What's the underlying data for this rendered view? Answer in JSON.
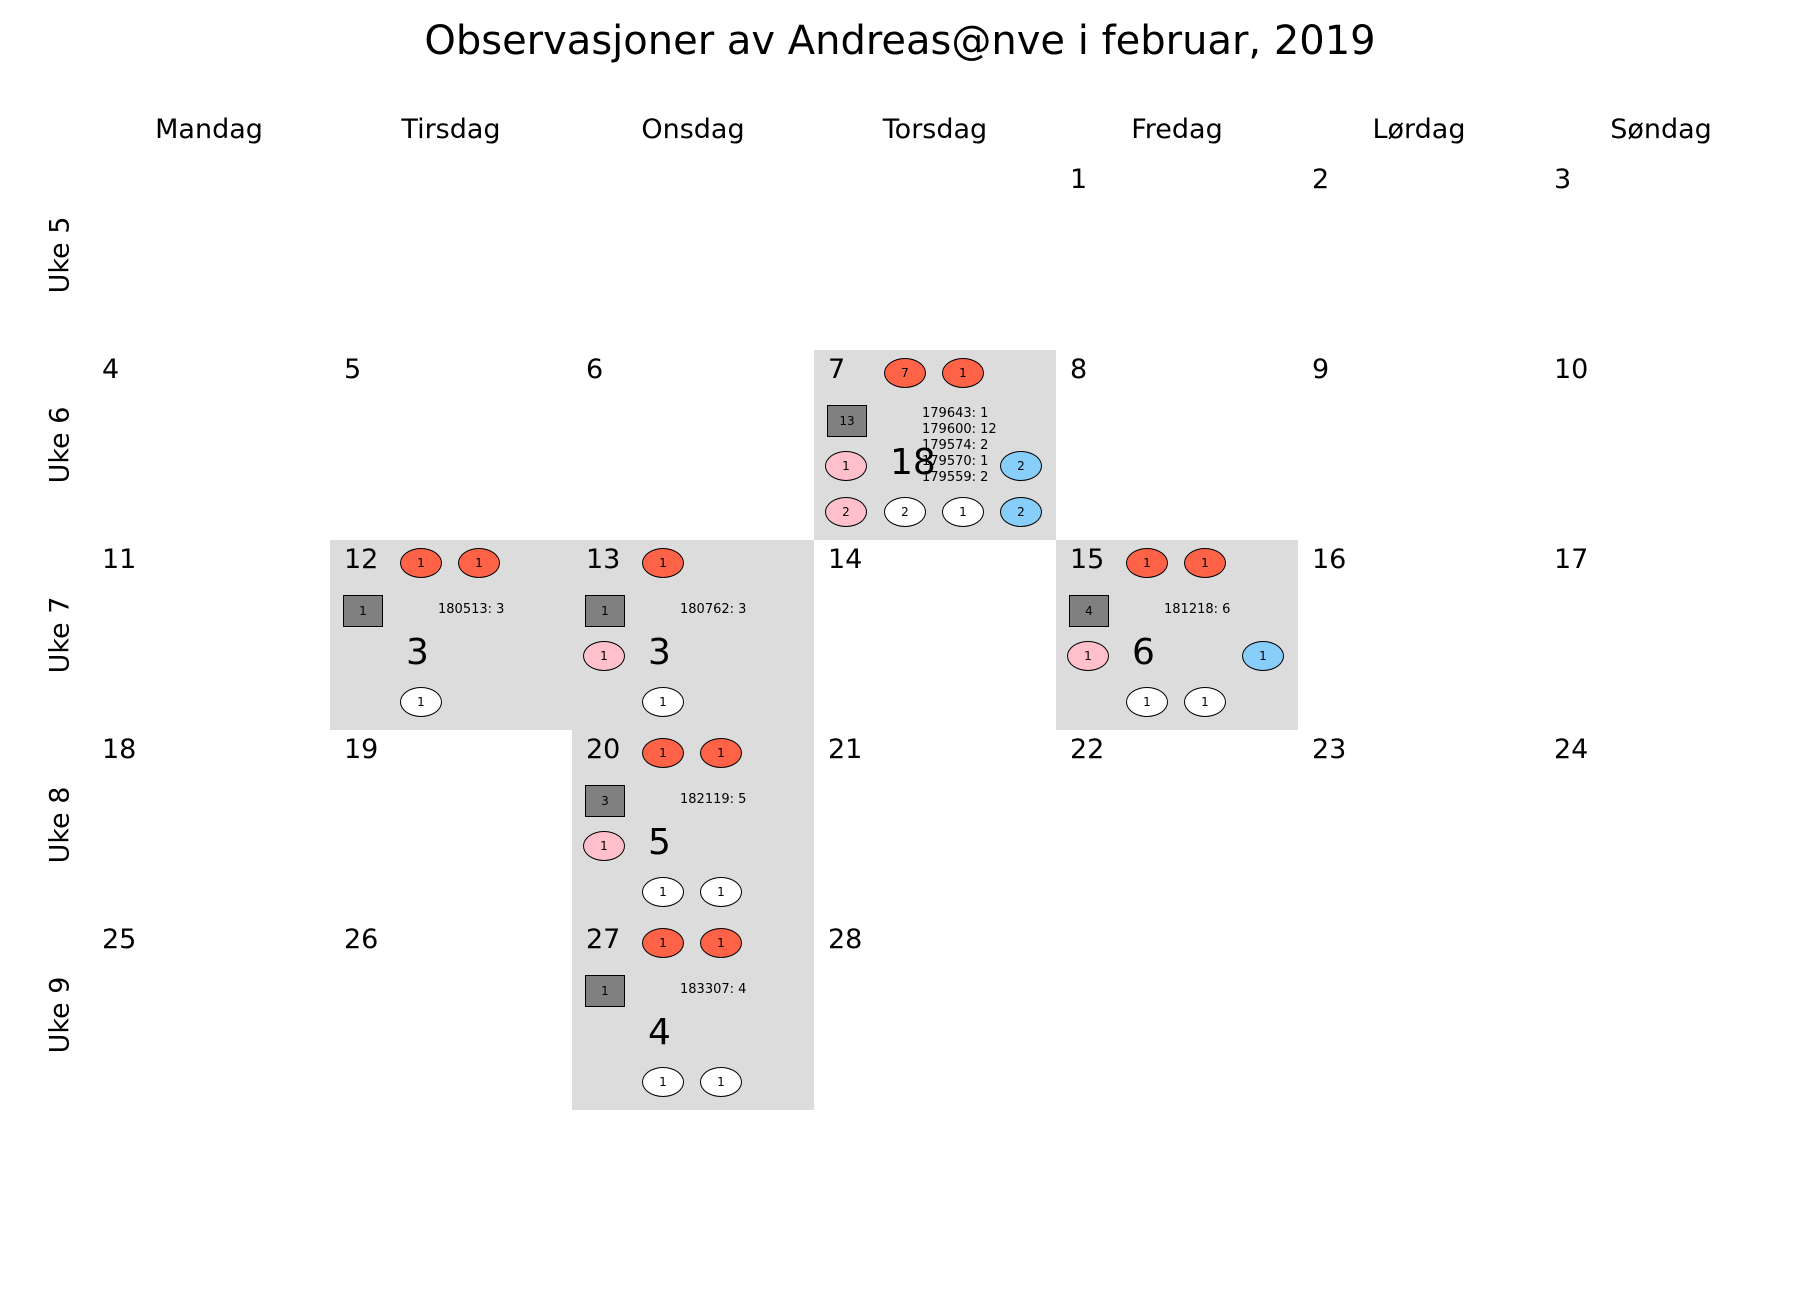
{
  "chart_data": {
    "type": "calendar",
    "title": "Observasjoner av Andreas@nve i februar, 2019",
    "days": [
      "Mandag",
      "Tirsdag",
      "Onsdag",
      "Torsdag",
      "Fredag",
      "Lørdag",
      "Søndag"
    ],
    "weeks": [
      {
        "label": "Uke 5",
        "dates": [
          "",
          "",
          "",
          "",
          "1",
          "2",
          "3"
        ]
      },
      {
        "label": "Uke 6",
        "dates": [
          "4",
          "5",
          "6",
          "7",
          "8",
          "9",
          "10"
        ]
      },
      {
        "label": "Uke 7",
        "dates": [
          "11",
          "12",
          "13",
          "14",
          "15",
          "16",
          "17"
        ]
      },
      {
        "label": "Uke 8",
        "dates": [
          "18",
          "19",
          "20",
          "21",
          "22",
          "23",
          "24"
        ]
      },
      {
        "label": "Uke 9",
        "dates": [
          "25",
          "26",
          "27",
          "28",
          "",
          "",
          ""
        ]
      }
    ],
    "colors": {
      "active": "#dcdcdc",
      "red": "#ff6347",
      "pink": "#ffc0cb",
      "white": "#ffffff",
      "blue": "#87cefa",
      "grey": "#808080"
    },
    "observations": [
      {
        "week": 1,
        "day": 3,
        "total": "18",
        "square": "13",
        "info": [
          "179643: 1",
          "179600: 12",
          "179574: 2",
          "179570: 1",
          "179559: 2"
        ],
        "top": [
          "7",
          "1"
        ],
        "left": [
          "1",
          "2"
        ],
        "bottom": [
          "2",
          "1"
        ],
        "right": [
          "2",
          "2"
        ]
      },
      {
        "week": 2,
        "day": 1,
        "total": "3",
        "square": "1",
        "info": [
          "180513: 3"
        ],
        "top": [
          "1",
          "1"
        ],
        "left": [],
        "bottom": [
          "1"
        ],
        "right": []
      },
      {
        "week": 2,
        "day": 2,
        "total": "3",
        "square": "1",
        "info": [
          "180762: 3"
        ],
        "top": [
          "1"
        ],
        "left": [
          "1"
        ],
        "bottom": [
          "1"
        ],
        "right": []
      },
      {
        "week": 2,
        "day": 4,
        "total": "6",
        "square": "4",
        "info": [
          "181218: 6"
        ],
        "top": [
          "1",
          "1"
        ],
        "left": [
          "1"
        ],
        "bottom": [
          "1",
          "1"
        ],
        "right": [
          "1"
        ]
      },
      {
        "week": 3,
        "day": 2,
        "total": "5",
        "square": "3",
        "info": [
          "182119: 5"
        ],
        "top": [
          "1",
          "1"
        ],
        "left": [
          "1"
        ],
        "bottom": [
          "1",
          "1"
        ],
        "right": []
      },
      {
        "week": 4,
        "day": 2,
        "total": "4",
        "square": "1",
        "info": [
          "183307: 4"
        ],
        "top": [
          "1",
          "1"
        ],
        "left": [],
        "bottom": [
          "1",
          "1"
        ],
        "right": []
      }
    ]
  }
}
